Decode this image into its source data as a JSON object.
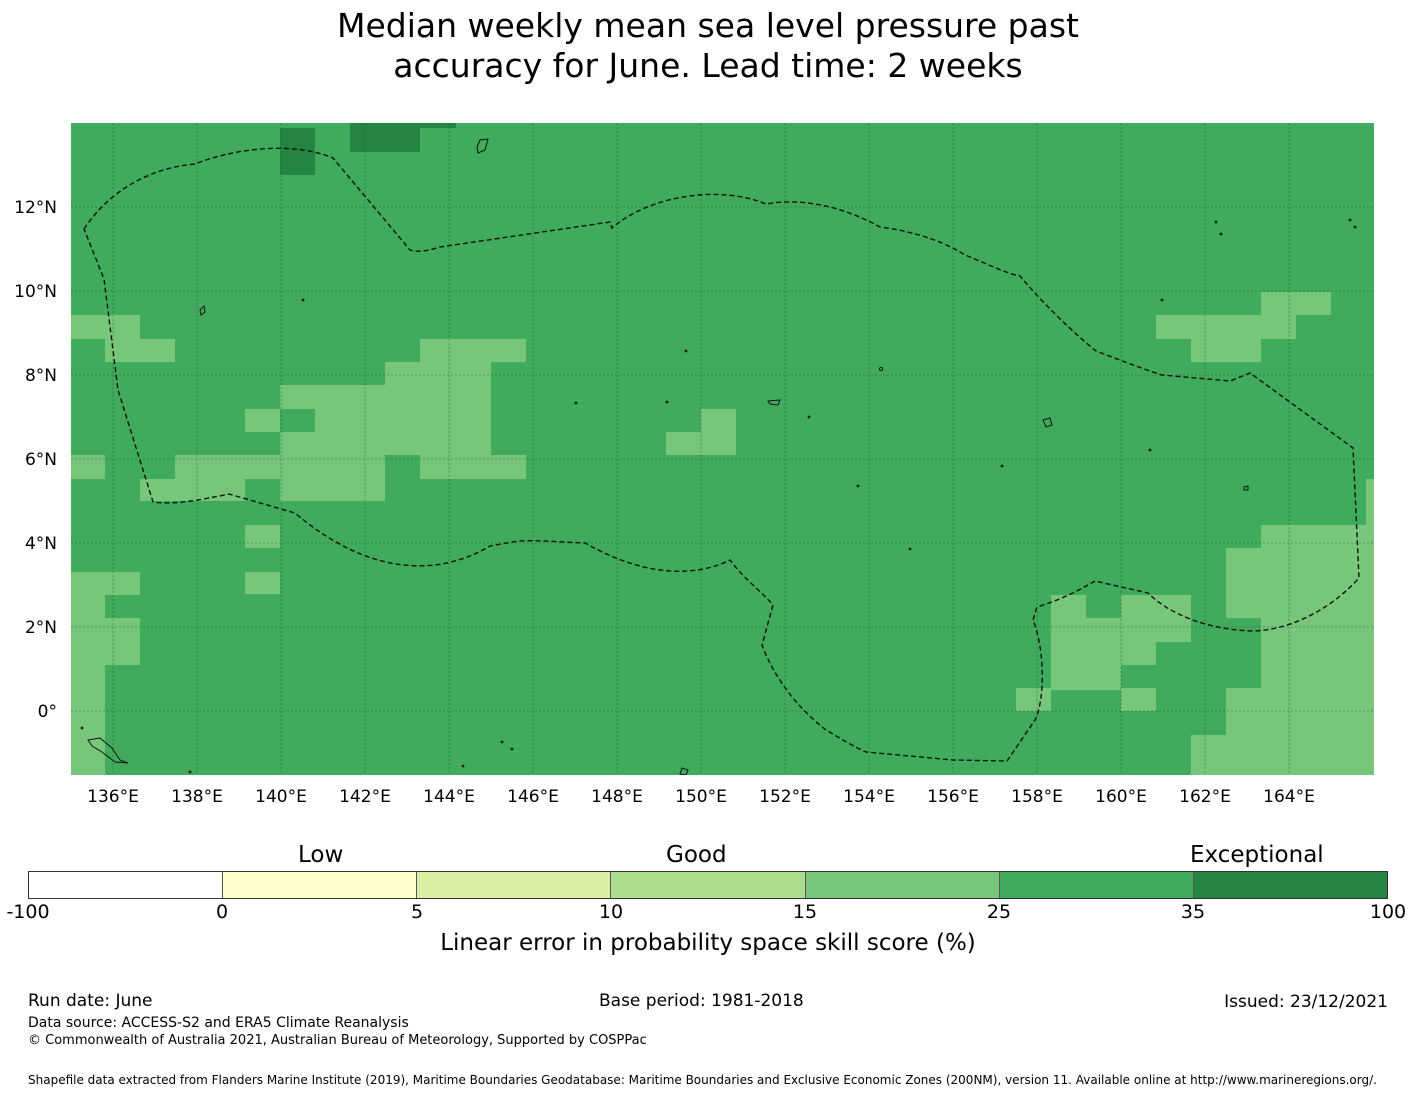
{
  "title_line1": "Median weekly mean sea level pressure past",
  "title_line2": "accuracy for June. Lead time: 2 weeks",
  "map": {
    "lon_labels": [
      "136°E",
      "138°E",
      "140°E",
      "142°E",
      "144°E",
      "146°E",
      "148°E",
      "150°E",
      "152°E",
      "154°E",
      "156°E",
      "158°E",
      "160°E",
      "162°E",
      "164°E"
    ],
    "lat_labels": [
      "12°N",
      "10°N",
      "8°N",
      "6°N",
      "4°N",
      "2°N",
      "0°"
    ],
    "colors": {
      "ocean_base": "#41ab5d",
      "light_patch": "#78c679",
      "dark_patch": "#238443"
    }
  },
  "legend": {
    "categories": [
      "Low",
      "Good",
      "Exceptional"
    ],
    "ticks": [
      "-100",
      "0",
      "5",
      "10",
      "15",
      "25",
      "35",
      "100"
    ],
    "colors": [
      "#ffffff",
      "#ffffcc",
      "#d9f0a3",
      "#addd8e",
      "#78c679",
      "#41ab5d",
      "#238443"
    ],
    "label": "Linear error in probability space skill score (%)"
  },
  "footer": {
    "run_date": "Run date: June",
    "base_period": "Base period: 1981-2018",
    "issued": "Issued: 23/12/2021",
    "data_source": "Data source: ACCESS-S2 and ERA5 Climate Reanalysis",
    "copyright": "© Commonwealth of Australia 2021, Australian Bureau of Meteorology, Supported by COSPPac",
    "shapefile": "Shapefile data extracted from Flanders Marine Institute (2019), Maritime Boundaries Geodatabase: Maritime Boundaries and Exclusive Economic Zones (200NM), version 11. Available online at http://www.marineregions.org/."
  }
}
